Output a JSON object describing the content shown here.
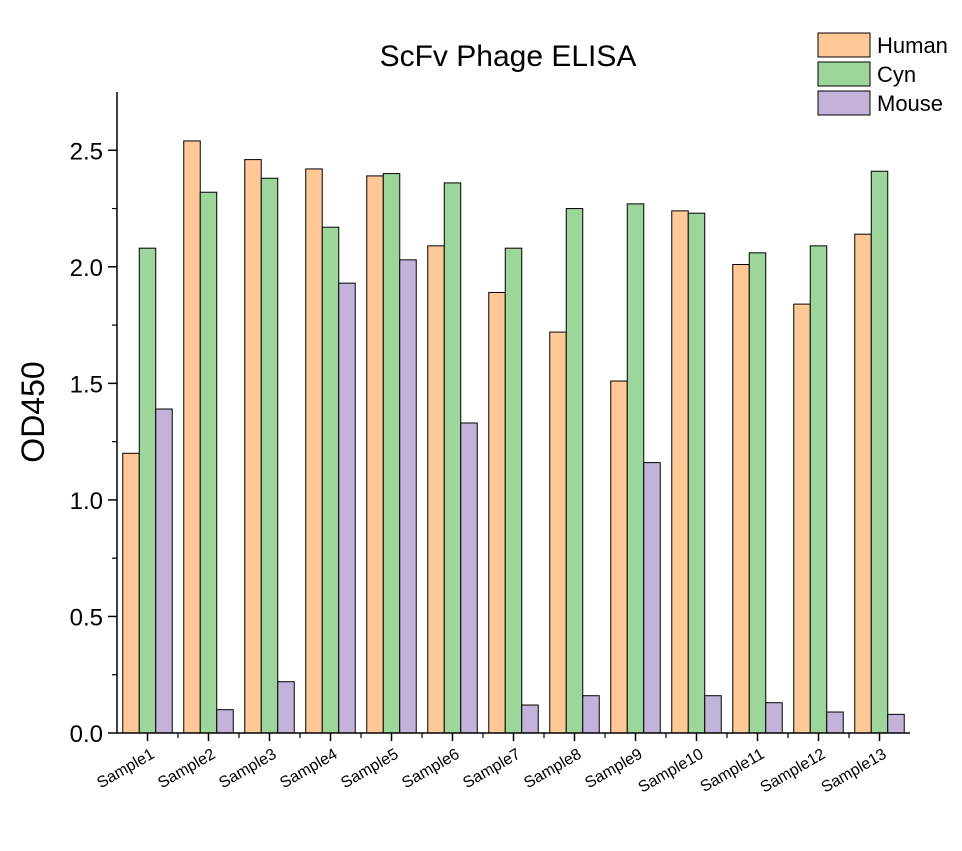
{
  "chart_data": {
    "type": "bar",
    "title": "ScFv Phage ELISA",
    "xlabel": "",
    "ylabel": "OD450",
    "ylim": [
      0,
      2.75
    ],
    "yticks": [
      0.0,
      0.5,
      1.0,
      1.5,
      2.0,
      2.5
    ],
    "ytick_labels": [
      "0.0",
      "0.5",
      "1.0",
      "1.5",
      "2.0",
      "2.5"
    ],
    "grid": false,
    "legend_position": "top-right",
    "categories": [
      "Sample1",
      "Sample2",
      "Sample3",
      "Sample4",
      "Sample5",
      "Sample6",
      "Sample7",
      "Sample8",
      "Sample9",
      "Sample10",
      "Sample11",
      "Sample12",
      "Sample13"
    ],
    "series": [
      {
        "name": "Human",
        "color": "#FFC896",
        "values": [
          1.2,
          2.54,
          2.46,
          2.42,
          2.39,
          2.09,
          1.89,
          1.72,
          1.51,
          2.24,
          2.01,
          1.84,
          2.14
        ]
      },
      {
        "name": "Cyn",
        "color": "#9CD69A",
        "values": [
          2.08,
          2.32,
          2.38,
          2.17,
          2.4,
          2.36,
          2.08,
          2.25,
          2.27,
          2.23,
          2.06,
          2.09,
          2.41
        ]
      },
      {
        "name": "Mouse",
        "color": "#C3B3DA",
        "values": [
          1.39,
          0.1,
          0.22,
          1.93,
          2.03,
          1.33,
          0.12,
          0.16,
          1.16,
          0.16,
          0.13,
          0.09,
          0.08
        ]
      }
    ]
  }
}
